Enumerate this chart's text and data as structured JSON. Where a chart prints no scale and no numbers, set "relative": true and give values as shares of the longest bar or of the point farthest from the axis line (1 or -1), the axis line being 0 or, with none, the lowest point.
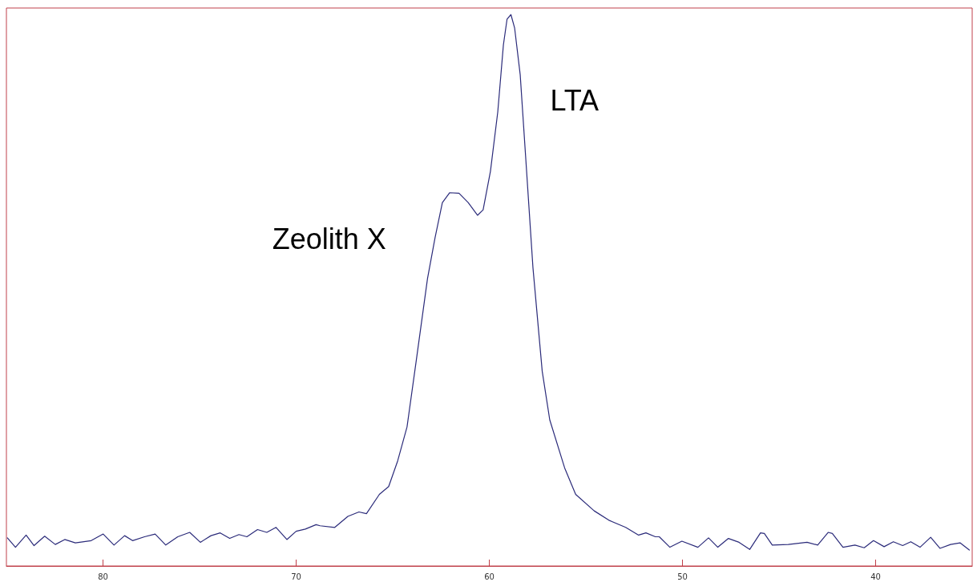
{
  "chart_data": {
    "type": "line",
    "relative": true,
    "xlim": [
      85,
      35
    ],
    "xticks": [
      80,
      70,
      60,
      50,
      40
    ],
    "series": [
      {
        "color": "#2b2b7a",
        "x": [
          84.95,
          84.53,
          83.98,
          83.57,
          83.02,
          82.47,
          81.98,
          81.43,
          80.61,
          79.99,
          79.43,
          78.88,
          78.47,
          77.85,
          77.3,
          76.75,
          76.13,
          75.51,
          74.96,
          74.41,
          73.93,
          73.44,
          72.96,
          72.55,
          72.0,
          71.52,
          71.04,
          70.48,
          70.0,
          69.52,
          68.97,
          68.76,
          68.0,
          67.32,
          66.75,
          66.36,
          65.69,
          65.21,
          64.74,
          64.26,
          63.78,
          63.2,
          62.81,
          62.43,
          62.05,
          61.57,
          61.09,
          60.61,
          60.32,
          59.94,
          59.56,
          59.27,
          59.08,
          58.88,
          58.69,
          58.4,
          58.12,
          57.74,
          57.26,
          56.87,
          56.1,
          55.53,
          54.57,
          53.81,
          52.94,
          52.27,
          51.89,
          51.4,
          51.2,
          50.65,
          50.03,
          49.2,
          48.65,
          48.17,
          47.62,
          47.07,
          46.52,
          45.96,
          45.76,
          45.35,
          44.52,
          43.55,
          43.0,
          42.45,
          42.24,
          41.69,
          41.07,
          40.59,
          40.11,
          39.56,
          39.08,
          38.6,
          38.18,
          37.7,
          37.15,
          36.67,
          36.12,
          35.63,
          35.15
        ],
        "values": [
          0.051,
          0.034,
          0.056,
          0.037,
          0.054,
          0.039,
          0.048,
          0.042,
          0.046,
          0.058,
          0.038,
          0.055,
          0.046,
          0.053,
          0.058,
          0.038,
          0.053,
          0.061,
          0.043,
          0.055,
          0.06,
          0.05,
          0.057,
          0.053,
          0.066,
          0.061,
          0.07,
          0.048,
          0.063,
          0.067,
          0.075,
          0.073,
          0.07,
          0.09,
          0.098,
          0.095,
          0.13,
          0.144,
          0.191,
          0.252,
          0.373,
          0.521,
          0.595,
          0.659,
          0.677,
          0.676,
          0.659,
          0.636,
          0.646,
          0.716,
          0.824,
          0.945,
          0.992,
          1.0,
          0.976,
          0.891,
          0.743,
          0.541,
          0.353,
          0.265,
          0.178,
          0.13,
          0.1,
          0.083,
          0.07,
          0.056,
          0.06,
          0.053,
          0.053,
          0.034,
          0.045,
          0.034,
          0.051,
          0.034,
          0.05,
          0.043,
          0.03,
          0.06,
          0.059,
          0.038,
          0.039,
          0.043,
          0.038,
          0.061,
          0.059,
          0.034,
          0.038,
          0.033,
          0.046,
          0.035,
          0.044,
          0.037,
          0.044,
          0.034,
          0.052,
          0.032,
          0.039,
          0.042,
          0.029
        ]
      }
    ],
    "annotations": [
      "Zeolith X",
      "LTA"
    ],
    "grid": false,
    "marker": "none",
    "line_style": "solid"
  }
}
